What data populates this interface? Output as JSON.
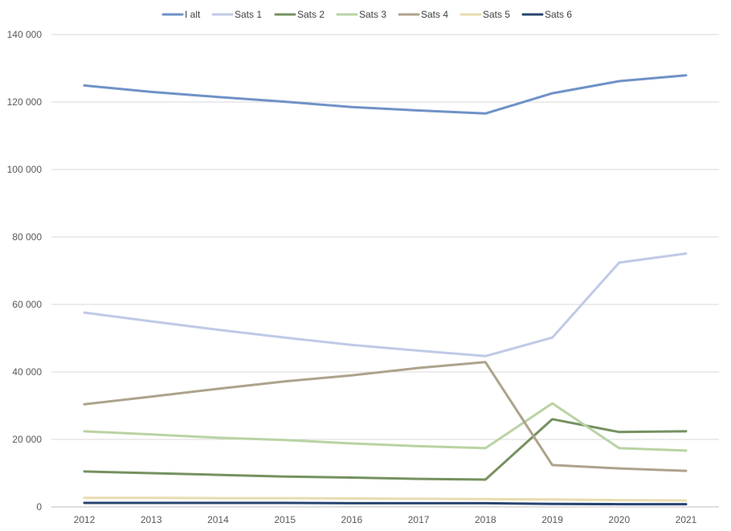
{
  "chart_data": {
    "type": "line",
    "title": "",
    "xlabel": "",
    "ylabel": "",
    "x": [
      "2012",
      "2013",
      "2014",
      "2015",
      "2016",
      "2017",
      "2018",
      "2019",
      "2020",
      "2021"
    ],
    "ylim": [
      0,
      140000
    ],
    "yticks": [
      0,
      20000,
      40000,
      60000,
      80000,
      100000,
      120000,
      140000
    ],
    "ytick_labels": [
      "0",
      "20 000",
      "40 000",
      "60 000",
      "80 000",
      "100 000",
      "120 000",
      "140 000"
    ],
    "grid": "horizontal",
    "legend_position": "top-center",
    "series": [
      {
        "name": "I alt",
        "color": "#6f92c7",
        "values": [
          124900,
          123000,
          121500,
          120100,
          118500,
          117500,
          116600,
          122600,
          126200,
          127900
        ]
      },
      {
        "name": "Sats 1",
        "color": "#c0cae6",
        "values": [
          57600,
          55000,
          52500,
          50200,
          48000,
          46300,
          44700,
          50200,
          72400,
          75100
        ]
      },
      {
        "name": "Sats 2",
        "color": "#759160",
        "values": [
          10500,
          10000,
          9500,
          9000,
          8700,
          8300,
          8100,
          26000,
          22200,
          22400
        ]
      },
      {
        "name": "Sats 3",
        "color": "#b9d3a3",
        "values": [
          22400,
          21500,
          20500,
          19800,
          18800,
          18000,
          17400,
          30700,
          17400,
          16700
        ]
      },
      {
        "name": "Sats 4",
        "color": "#ada38c",
        "values": [
          30400,
          32700,
          35000,
          37200,
          39000,
          41200,
          42900,
          12400,
          11400,
          10700
        ]
      },
      {
        "name": "Sats 5",
        "color": "#e8dcb0",
        "values": [
          2700,
          2700,
          2600,
          2600,
          2500,
          2400,
          2300,
          2200,
          2000,
          1900
        ]
      },
      {
        "name": "Sats 6",
        "color": "#284570",
        "values": [
          1200,
          1200,
          1200,
          1200,
          1100,
          1100,
          1100,
          900,
          800,
          800
        ]
      }
    ]
  }
}
